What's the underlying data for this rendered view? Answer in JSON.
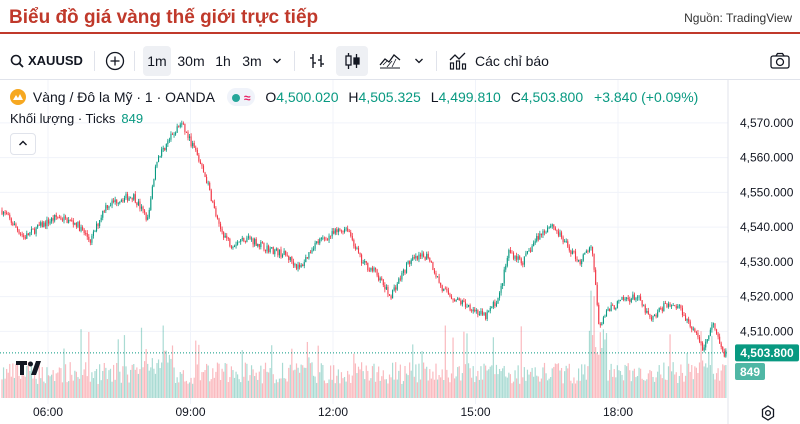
{
  "header": {
    "title": "Biểu đồ giá vàng thế giới trực tiếp",
    "source": "Nguồn: TradingView"
  },
  "toolbar": {
    "symbol": "XAUUSD",
    "intervals": [
      "1m",
      "30m",
      "1h",
      "3m"
    ],
    "active_interval": "1m",
    "indicators_label": "Các chỉ báo"
  },
  "legend": {
    "instrument": "Vàng / Đô la Mỹ · 1 · OANDA",
    "status_wave": "≈",
    "open_key": "O",
    "open": "4,500.020",
    "high_key": "H",
    "high": "4,505.325",
    "low_key": "L",
    "low": "4,499.810",
    "close_key": "C",
    "close": "4,503.800",
    "change": "+3.840 (+0.09%)",
    "volume_label": "Khối lượng · Ticks",
    "volume_value": "849"
  },
  "colors": {
    "up": "#089981",
    "down": "#f23645",
    "price_badge": "#089981",
    "title": "#c0392b"
  },
  "chart_data": {
    "type": "line",
    "series_type": "candlestick",
    "y_ticks": [
      "4,570.000",
      "4,560.000",
      "4,550.000",
      "4,540.000",
      "4,530.000",
      "4,520.000",
      "4,510.000"
    ],
    "x_ticks": [
      "06:00",
      "09:00",
      "12:00",
      "15:00",
      "18:00"
    ],
    "ylim": [
      4496,
      4576
    ],
    "last_price": "4,503.800",
    "last_volume": "849",
    "price_path": [
      [
        4.9,
        4547
      ],
      [
        5.2,
        4542
      ],
      [
        5.5,
        4537
      ],
      [
        5.8,
        4540
      ],
      [
        6.2,
        4543
      ],
      [
        6.6,
        4541
      ],
      [
        6.9,
        4536
      ],
      [
        7.2,
        4546
      ],
      [
        7.5,
        4548
      ],
      [
        7.8,
        4549
      ],
      [
        8.1,
        4542
      ],
      [
        8.3,
        4560
      ],
      [
        8.55,
        4565
      ],
      [
        8.8,
        4570
      ],
      [
        9.1,
        4562
      ],
      [
        9.35,
        4553
      ],
      [
        9.6,
        4540
      ],
      [
        9.85,
        4535
      ],
      [
        10.2,
        4537
      ],
      [
        10.6,
        4534
      ],
      [
        11.0,
        4532
      ],
      [
        11.3,
        4528
      ],
      [
        11.6,
        4535
      ],
      [
        12.0,
        4538
      ],
      [
        12.3,
        4540
      ],
      [
        12.6,
        4530
      ],
      [
        12.9,
        4527
      ],
      [
        13.2,
        4520
      ],
      [
        13.6,
        4530
      ],
      [
        14.0,
        4532
      ],
      [
        14.3,
        4522
      ],
      [
        14.6,
        4519
      ],
      [
        14.9,
        4517
      ],
      [
        15.2,
        4514
      ],
      [
        15.5,
        4520
      ],
      [
        15.7,
        4533
      ],
      [
        16.0,
        4530
      ],
      [
        16.3,
        4537
      ],
      [
        16.6,
        4541
      ],
      [
        16.9,
        4535
      ],
      [
        17.2,
        4530
      ],
      [
        17.45,
        4535
      ],
      [
        17.6,
        4512
      ],
      [
        17.8,
        4516
      ],
      [
        18.1,
        4519
      ],
      [
        18.4,
        4520
      ],
      [
        18.7,
        4513
      ],
      [
        19.0,
        4518
      ],
      [
        19.3,
        4517
      ],
      [
        19.6,
        4510
      ],
      [
        19.8,
        4505
      ],
      [
        20.0,
        4512
      ],
      [
        20.2,
        4503.8
      ]
    ]
  }
}
